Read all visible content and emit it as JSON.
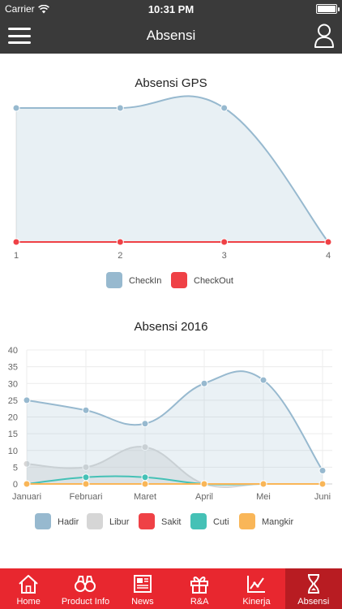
{
  "status_bar": {
    "carrier": "Carrier",
    "time": "10:31 PM",
    "battery_level": 1.0
  },
  "header": {
    "title": "Absensi",
    "menu_icon": "hamburger-icon",
    "user_icon": "user-icon"
  },
  "colors": {
    "nav_bg": "#3a3a3a",
    "tab_bg": "#e8272f",
    "tab_active_bg": "#b81c22"
  },
  "chart_data": [
    {
      "type": "area",
      "title": "Absensi GPS",
      "x": [
        "1",
        "2",
        "3",
        "4"
      ],
      "ylim": [
        0,
        1
      ],
      "grid": false,
      "legend_position": "bottom",
      "series": [
        {
          "name": "CheckIn",
          "values": [
            1,
            1,
            1,
            0
          ],
          "color": "#97b9cf",
          "fill": "rgba(151,185,207,0.22)"
        },
        {
          "name": "CheckOut",
          "values": [
            0,
            0,
            0,
            0
          ],
          "color": "#ef4146",
          "fill": "none"
        }
      ]
    },
    {
      "type": "area",
      "title": "Absensi 2016",
      "x": [
        "Januari",
        "Februari",
        "Maret",
        "April",
        "Mei",
        "Juni"
      ],
      "yticks": [
        "0",
        "5",
        "10",
        "15",
        "20",
        "25",
        "30",
        "35",
        "40"
      ],
      "ylim": [
        0,
        40
      ],
      "grid": true,
      "legend_position": "bottom",
      "series": [
        {
          "name": "Hadir",
          "values": [
            25,
            22,
            18,
            30,
            31,
            4
          ],
          "color": "#97b9cf",
          "fill": "rgba(151,185,207,0.2)"
        },
        {
          "name": "Libur",
          "values": [
            6,
            5,
            11,
            0,
            0,
            0
          ],
          "color": "#d6d6d6",
          "fill": "rgba(214,214,214,0.45)"
        },
        {
          "name": "Sakit",
          "values": [
            0,
            0,
            0,
            0,
            0,
            0
          ],
          "color": "#ef4146",
          "fill": "none"
        },
        {
          "name": "Cuti",
          "values": [
            0,
            2,
            2,
            0,
            0,
            0
          ],
          "color": "#45c1b6",
          "fill": "none"
        },
        {
          "name": "Mangkir",
          "values": [
            0,
            0,
            0,
            0,
            0,
            0
          ],
          "color": "#f9b658",
          "fill": "none"
        }
      ]
    }
  ],
  "tabs": [
    {
      "label": "Home",
      "icon": "home-icon",
      "active": false
    },
    {
      "label": "Product Info",
      "icon": "binoculars-icon",
      "active": false
    },
    {
      "label": "News",
      "icon": "newspaper-icon",
      "active": false
    },
    {
      "label": "R&A",
      "icon": "gift-icon",
      "active": false
    },
    {
      "label": "Kinerja",
      "icon": "chart-line-icon",
      "active": false
    },
    {
      "label": "Absensi",
      "icon": "hourglass-icon",
      "active": true
    }
  ]
}
